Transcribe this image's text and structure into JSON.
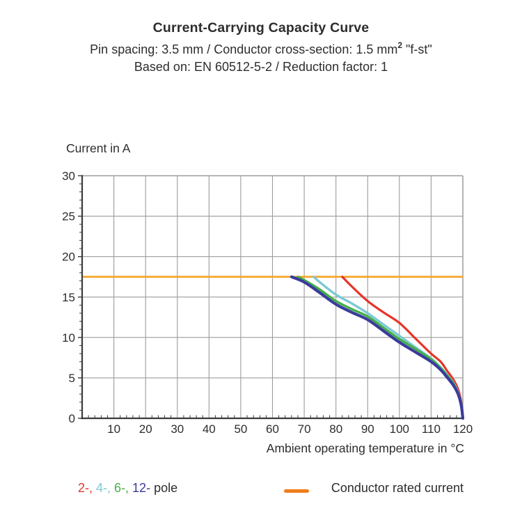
{
  "header": {
    "title": "Current-Carrying Capacity Curve",
    "subtitle_prefix": "Pin spacing: 3.5 mm / Conductor cross-section: 1.5 mm",
    "subtitle_sup": "2",
    "subtitle_suffix": " \"f-st\"",
    "subtitle2": "Based on: EN 60512-5-2 / Reduction factor: 1"
  },
  "chart_data": {
    "type": "line",
    "title": "Current-Carrying Capacity Curve",
    "xlabel": "Ambient operating temperature in °C",
    "ylabel": "Current in A",
    "xlim": [
      0,
      120
    ],
    "ylim": [
      0,
      30
    ],
    "x_ticks": [
      10,
      20,
      30,
      40,
      50,
      60,
      70,
      80,
      90,
      100,
      110,
      120
    ],
    "y_ticks": [
      0,
      5,
      10,
      15,
      20,
      25,
      30
    ],
    "x_minor_step": 2,
    "y_minor_step": 1,
    "grid": true,
    "rated_current": {
      "label": "Conductor rated current",
      "value": 17.5,
      "color": "#F6A323"
    },
    "series": [
      {
        "name": "2-pole",
        "color": "#E5352B",
        "points": [
          [
            82,
            17.5
          ],
          [
            85,
            16.3
          ],
          [
            90,
            14.5
          ],
          [
            95,
            13.1
          ],
          [
            100,
            11.8
          ],
          [
            105,
            9.9
          ],
          [
            110,
            8.0
          ],
          [
            113,
            7.0
          ],
          [
            115,
            5.9
          ],
          [
            117,
            4.8
          ],
          [
            118.5,
            3.6
          ],
          [
            119.5,
            2.0
          ],
          [
            120,
            0
          ]
        ]
      },
      {
        "name": "4-pole",
        "color": "#7DC9D3",
        "points": [
          [
            73,
            17.5
          ],
          [
            75,
            16.8
          ],
          [
            80,
            15.3
          ],
          [
            85,
            14.2
          ],
          [
            90,
            13.0
          ],
          [
            95,
            11.6
          ],
          [
            100,
            10.2
          ],
          [
            105,
            8.8
          ],
          [
            110,
            7.4
          ],
          [
            113,
            6.3
          ],
          [
            115,
            5.4
          ],
          [
            117,
            4.4
          ],
          [
            118.5,
            3.2
          ],
          [
            119.5,
            1.8
          ],
          [
            120,
            0
          ]
        ]
      },
      {
        "name": "6-pole",
        "color": "#44AF49",
        "points": [
          [
            68,
            17.5
          ],
          [
            70,
            17.1
          ],
          [
            75,
            15.9
          ],
          [
            80,
            14.5
          ],
          [
            85,
            13.5
          ],
          [
            90,
            12.6
          ],
          [
            95,
            11.2
          ],
          [
            100,
            9.8
          ],
          [
            105,
            8.6
          ],
          [
            110,
            7.3
          ],
          [
            113,
            6.2
          ],
          [
            115,
            5.3
          ],
          [
            117,
            4.3
          ],
          [
            118.5,
            3.1
          ],
          [
            119.5,
            1.7
          ],
          [
            120,
            0
          ]
        ]
      },
      {
        "name": "12-pole",
        "color": "#3A3B9B",
        "points": [
          [
            66,
            17.5
          ],
          [
            70,
            16.85
          ],
          [
            75,
            15.5
          ],
          [
            80,
            14.1
          ],
          [
            85,
            13.1
          ],
          [
            90,
            12.2
          ],
          [
            95,
            10.8
          ],
          [
            100,
            9.4
          ],
          [
            105,
            8.2
          ],
          [
            110,
            7.0
          ],
          [
            113,
            6.0
          ],
          [
            115,
            5.1
          ],
          [
            117,
            4.1
          ],
          [
            118.5,
            3.0
          ],
          [
            119.5,
            1.6
          ],
          [
            120,
            0
          ]
        ]
      }
    ]
  },
  "legend": {
    "pole_items": [
      {
        "label": "2-",
        "color": "#E5352B"
      },
      {
        "label": "4-",
        "color": "#7DC9D3"
      },
      {
        "label": "6-",
        "color": "#44AF49"
      },
      {
        "label": "12-",
        "color": "#3A3B9B"
      }
    ],
    "pole_separator": ",",
    "pole_suffix": " pole",
    "rated_label": "Conductor rated current",
    "rated_color": "#EF7D1C"
  },
  "colors": {
    "grid": "#9C9C9C",
    "axis": "#3B3B3B",
    "text": "#2D2D2D"
  }
}
